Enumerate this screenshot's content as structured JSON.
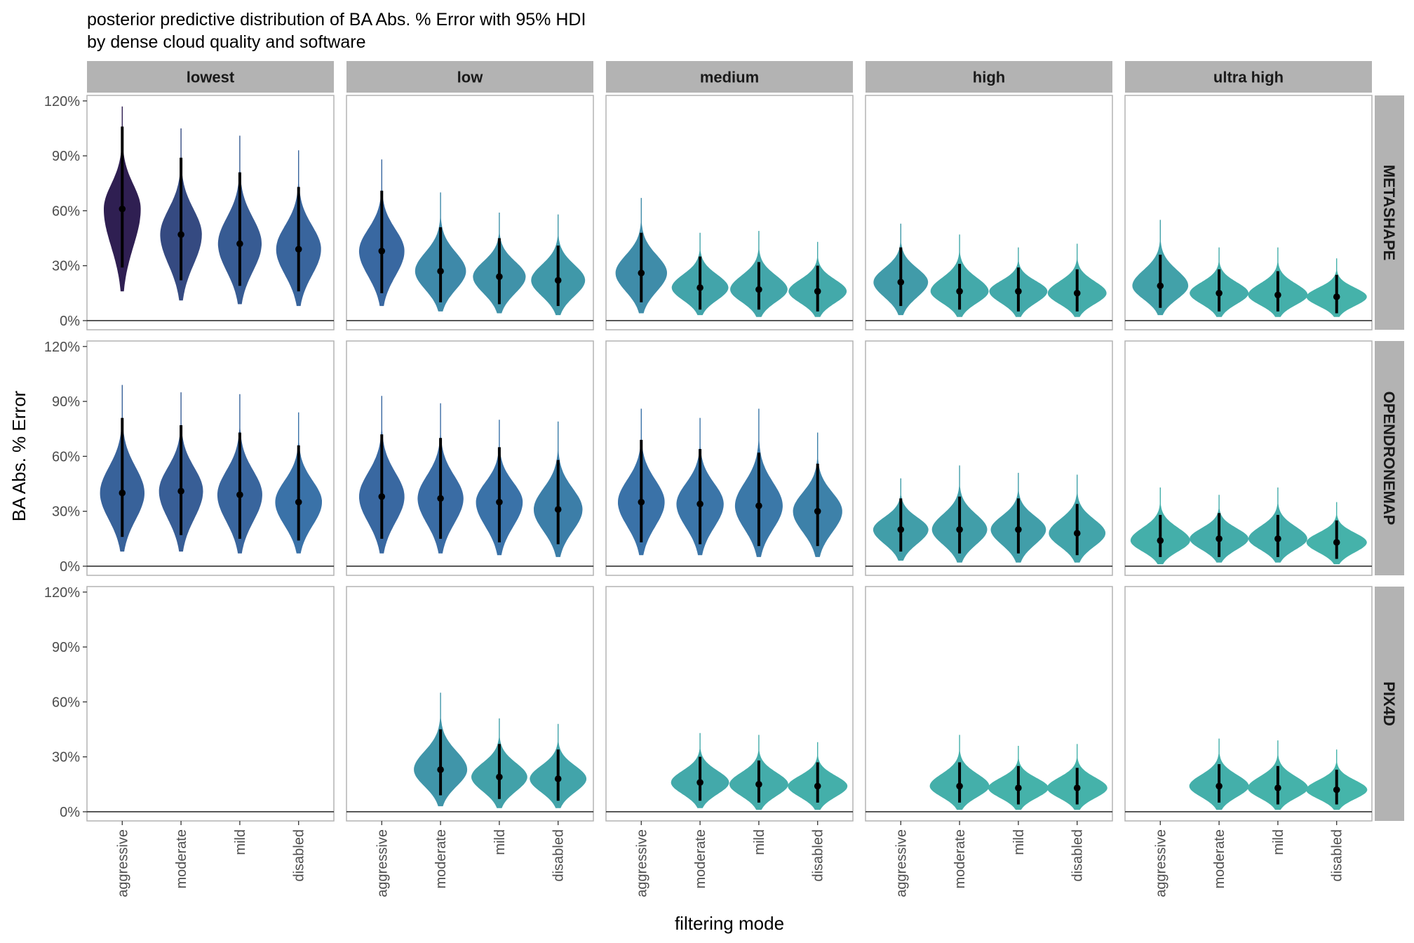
{
  "chart_data": {
    "type": "violin",
    "title": "posterior predictive distribution of BA Abs. % Error with 95% HDI",
    "subtitle": "by dense cloud quality and software",
    "xlabel": "filtering mode",
    "ylabel": "BA Abs. % Error",
    "ylim": [
      -0.05,
      1.23
    ],
    "y_ticks": [
      0,
      0.3,
      0.6,
      0.9,
      1.2
    ],
    "y_tick_labels": [
      "0%",
      "30%",
      "60%",
      "90%",
      "120%"
    ],
    "grid": false,
    "reference_line_y": 0,
    "columns": [
      "lowest",
      "low",
      "medium",
      "high",
      "ultra high"
    ],
    "rows": [
      "METASHAPE",
      "OPENDRONEMAP",
      "PIX4D"
    ],
    "categories": [
      "aggressive",
      "moderate",
      "mild",
      "disabled"
    ],
    "color_scale": {
      "low": "#45b5aa",
      "mid": "#3a6fa8",
      "high": "#2f1f52",
      "max_median": 0.6
    },
    "series": [
      {
        "software": "METASHAPE",
        "quality": "lowest",
        "points": [
          {
            "filter": "aggressive",
            "median": 0.61,
            "hdi": [
              0.29,
              1.06
            ],
            "range": [
              0.16,
              1.17
            ]
          },
          {
            "filter": "moderate",
            "median": 0.47,
            "hdi": [
              0.22,
              0.89
            ],
            "range": [
              0.11,
              1.05
            ]
          },
          {
            "filter": "mild",
            "median": 0.42,
            "hdi": [
              0.19,
              0.81
            ],
            "range": [
              0.09,
              1.01
            ]
          },
          {
            "filter": "disabled",
            "median": 0.39,
            "hdi": [
              0.16,
              0.73
            ],
            "range": [
              0.08,
              0.93
            ]
          }
        ]
      },
      {
        "software": "METASHAPE",
        "quality": "low",
        "points": [
          {
            "filter": "aggressive",
            "median": 0.38,
            "hdi": [
              0.15,
              0.71
            ],
            "range": [
              0.08,
              0.88
            ]
          },
          {
            "filter": "moderate",
            "median": 0.27,
            "hdi": [
              0.1,
              0.51
            ],
            "range": [
              0.05,
              0.7
            ]
          },
          {
            "filter": "mild",
            "median": 0.24,
            "hdi": [
              0.09,
              0.45
            ],
            "range": [
              0.04,
              0.59
            ]
          },
          {
            "filter": "disabled",
            "median": 0.22,
            "hdi": [
              0.08,
              0.41
            ],
            "range": [
              0.03,
              0.58
            ]
          }
        ]
      },
      {
        "software": "METASHAPE",
        "quality": "medium",
        "points": [
          {
            "filter": "aggressive",
            "median": 0.26,
            "hdi": [
              0.1,
              0.48
            ],
            "range": [
              0.04,
              0.67
            ]
          },
          {
            "filter": "moderate",
            "median": 0.18,
            "hdi": [
              0.06,
              0.35
            ],
            "range": [
              0.03,
              0.48
            ]
          },
          {
            "filter": "mild",
            "median": 0.17,
            "hdi": [
              0.06,
              0.32
            ],
            "range": [
              0.02,
              0.49
            ]
          },
          {
            "filter": "disabled",
            "median": 0.16,
            "hdi": [
              0.05,
              0.3
            ],
            "range": [
              0.02,
              0.43
            ]
          }
        ]
      },
      {
        "software": "METASHAPE",
        "quality": "high",
        "points": [
          {
            "filter": "aggressive",
            "median": 0.21,
            "hdi": [
              0.08,
              0.4
            ],
            "range": [
              0.03,
              0.53
            ]
          },
          {
            "filter": "moderate",
            "median": 0.16,
            "hdi": [
              0.06,
              0.31
            ],
            "range": [
              0.02,
              0.47
            ]
          },
          {
            "filter": "mild",
            "median": 0.16,
            "hdi": [
              0.05,
              0.29
            ],
            "range": [
              0.02,
              0.4
            ]
          },
          {
            "filter": "disabled",
            "median": 0.15,
            "hdi": [
              0.05,
              0.28
            ],
            "range": [
              0.02,
              0.42
            ]
          }
        ]
      },
      {
        "software": "METASHAPE",
        "quality": "ultra high",
        "points": [
          {
            "filter": "aggressive",
            "median": 0.19,
            "hdi": [
              0.07,
              0.36
            ],
            "range": [
              0.03,
              0.55
            ]
          },
          {
            "filter": "moderate",
            "median": 0.15,
            "hdi": [
              0.05,
              0.28
            ],
            "range": [
              0.02,
              0.4
            ]
          },
          {
            "filter": "mild",
            "median": 0.14,
            "hdi": [
              0.05,
              0.27
            ],
            "range": [
              0.02,
              0.4
            ]
          },
          {
            "filter": "disabled",
            "median": 0.13,
            "hdi": [
              0.04,
              0.25
            ],
            "range": [
              0.02,
              0.34
            ]
          }
        ]
      },
      {
        "software": "OPENDRONEMAP",
        "quality": "lowest",
        "points": [
          {
            "filter": "aggressive",
            "median": 0.4,
            "hdi": [
              0.16,
              0.81
            ],
            "range": [
              0.08,
              0.99
            ]
          },
          {
            "filter": "moderate",
            "median": 0.41,
            "hdi": [
              0.17,
              0.77
            ],
            "range": [
              0.08,
              0.95
            ]
          },
          {
            "filter": "mild",
            "median": 0.39,
            "hdi": [
              0.15,
              0.73
            ],
            "range": [
              0.07,
              0.94
            ]
          },
          {
            "filter": "disabled",
            "median": 0.35,
            "hdi": [
              0.14,
              0.66
            ],
            "range": [
              0.07,
              0.84
            ]
          }
        ]
      },
      {
        "software": "OPENDRONEMAP",
        "quality": "low",
        "points": [
          {
            "filter": "aggressive",
            "median": 0.38,
            "hdi": [
              0.15,
              0.72
            ],
            "range": [
              0.07,
              0.93
            ]
          },
          {
            "filter": "moderate",
            "median": 0.37,
            "hdi": [
              0.15,
              0.7
            ],
            "range": [
              0.07,
              0.89
            ]
          },
          {
            "filter": "mild",
            "median": 0.35,
            "hdi": [
              0.13,
              0.65
            ],
            "range": [
              0.06,
              0.8
            ]
          },
          {
            "filter": "disabled",
            "median": 0.31,
            "hdi": [
              0.12,
              0.58
            ],
            "range": [
              0.05,
              0.79
            ]
          }
        ]
      },
      {
        "software": "OPENDRONEMAP",
        "quality": "medium",
        "points": [
          {
            "filter": "aggressive",
            "median": 0.35,
            "hdi": [
              0.13,
              0.69
            ],
            "range": [
              0.06,
              0.86
            ]
          },
          {
            "filter": "moderate",
            "median": 0.34,
            "hdi": [
              0.12,
              0.64
            ],
            "range": [
              0.06,
              0.81
            ]
          },
          {
            "filter": "mild",
            "median": 0.33,
            "hdi": [
              0.11,
              0.62
            ],
            "range": [
              0.05,
              0.86
            ]
          },
          {
            "filter": "disabled",
            "median": 0.3,
            "hdi": [
              0.11,
              0.56
            ],
            "range": [
              0.05,
              0.73
            ]
          }
        ]
      },
      {
        "software": "OPENDRONEMAP",
        "quality": "high",
        "points": [
          {
            "filter": "aggressive",
            "median": 0.2,
            "hdi": [
              0.08,
              0.37
            ],
            "range": [
              0.03,
              0.48
            ]
          },
          {
            "filter": "moderate",
            "median": 0.2,
            "hdi": [
              0.07,
              0.38
            ],
            "range": [
              0.02,
              0.55
            ]
          },
          {
            "filter": "mild",
            "median": 0.2,
            "hdi": [
              0.07,
              0.37
            ],
            "range": [
              0.02,
              0.51
            ]
          },
          {
            "filter": "disabled",
            "median": 0.18,
            "hdi": [
              0.06,
              0.34
            ],
            "range": [
              0.02,
              0.5
            ]
          }
        ]
      },
      {
        "software": "OPENDRONEMAP",
        "quality": "ultra high",
        "points": [
          {
            "filter": "aggressive",
            "median": 0.14,
            "hdi": [
              0.05,
              0.28
            ],
            "range": [
              0.01,
              0.43
            ]
          },
          {
            "filter": "moderate",
            "median": 0.15,
            "hdi": [
              0.05,
              0.29
            ],
            "range": [
              0.02,
              0.39
            ]
          },
          {
            "filter": "mild",
            "median": 0.15,
            "hdi": [
              0.05,
              0.28
            ],
            "range": [
              0.02,
              0.43
            ]
          },
          {
            "filter": "disabled",
            "median": 0.13,
            "hdi": [
              0.04,
              0.25
            ],
            "range": [
              0.01,
              0.35
            ]
          }
        ]
      },
      {
        "software": "PIX4D",
        "quality": "low",
        "points": [
          {
            "filter": "moderate",
            "median": 0.23,
            "hdi": [
              0.09,
              0.45
            ],
            "range": [
              0.03,
              0.65
            ]
          },
          {
            "filter": "mild",
            "median": 0.19,
            "hdi": [
              0.07,
              0.37
            ],
            "range": [
              0.02,
              0.51
            ]
          },
          {
            "filter": "disabled",
            "median": 0.18,
            "hdi": [
              0.06,
              0.34
            ],
            "range": [
              0.02,
              0.48
            ]
          }
        ]
      },
      {
        "software": "PIX4D",
        "quality": "medium",
        "points": [
          {
            "filter": "moderate",
            "median": 0.16,
            "hdi": [
              0.06,
              0.3
            ],
            "range": [
              0.02,
              0.43
            ]
          },
          {
            "filter": "mild",
            "median": 0.15,
            "hdi": [
              0.05,
              0.28
            ],
            "range": [
              0.01,
              0.42
            ]
          },
          {
            "filter": "disabled",
            "median": 0.14,
            "hdi": [
              0.05,
              0.27
            ],
            "range": [
              0.01,
              0.38
            ]
          }
        ]
      },
      {
        "software": "PIX4D",
        "quality": "high",
        "points": [
          {
            "filter": "moderate",
            "median": 0.14,
            "hdi": [
              0.05,
              0.27
            ],
            "range": [
              0.01,
              0.42
            ]
          },
          {
            "filter": "mild",
            "median": 0.13,
            "hdi": [
              0.04,
              0.25
            ],
            "range": [
              0.01,
              0.36
            ]
          },
          {
            "filter": "disabled",
            "median": 0.13,
            "hdi": [
              0.04,
              0.24
            ],
            "range": [
              0.01,
              0.37
            ]
          }
        ]
      },
      {
        "software": "PIX4D",
        "quality": "ultra high",
        "points": [
          {
            "filter": "moderate",
            "median": 0.14,
            "hdi": [
              0.05,
              0.26
            ],
            "range": [
              0.01,
              0.4
            ]
          },
          {
            "filter": "mild",
            "median": 0.13,
            "hdi": [
              0.04,
              0.25
            ],
            "range": [
              0.01,
              0.39
            ]
          },
          {
            "filter": "disabled",
            "median": 0.12,
            "hdi": [
              0.04,
              0.23
            ],
            "range": [
              0.01,
              0.34
            ]
          }
        ]
      }
    ]
  }
}
